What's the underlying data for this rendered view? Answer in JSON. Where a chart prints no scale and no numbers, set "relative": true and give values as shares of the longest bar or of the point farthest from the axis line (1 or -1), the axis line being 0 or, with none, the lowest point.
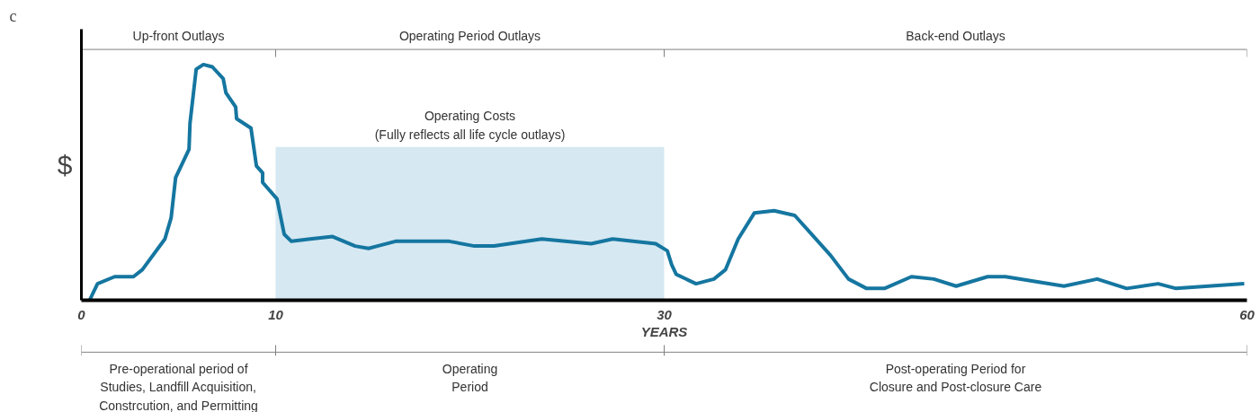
{
  "chart_data": {
    "type": "line",
    "title": "c",
    "ylabel": "$",
    "xlabel": "YEARS",
    "relative": true,
    "xlim": [
      0,
      60
    ],
    "xticks": [
      0,
      10,
      30,
      60
    ],
    "grid": false,
    "series": [
      {
        "type": "area",
        "color": "#d6e8f2",
        "x": [
          10,
          30
        ],
        "values": [
          0.65,
          0.65
        ]
      },
      {
        "color": "#1576a0",
        "line_style": "solid",
        "marker": "none",
        "x": [
          0.42,
          0.83,
          1.71,
          2.68,
          3.14,
          4.3,
          4.62,
          4.85,
          5.54,
          5.59,
          5.91,
          6.28,
          6.74,
          7.3,
          7.44,
          7.94,
          7.99,
          8.73,
          9.01,
          9.33,
          9.33,
          10.07,
          10.44,
          10.81,
          11.78,
          12.93,
          14.09,
          14.78,
          15.24,
          16.17,
          18.94,
          20.23,
          21.25,
          23.7,
          26.24,
          27.35,
          29.56,
          30.16,
          30.39,
          30.62,
          31.64,
          32.56,
          33.16,
          33.81,
          34.64,
          35.66,
          36.72,
          38.57,
          39.49,
          40.42,
          41.34,
          42.73,
          43.88,
          45.03,
          46.65,
          47.57,
          50.58,
          52.29,
          53.81,
          55.43,
          56.35,
          59.86
        ],
        "values": [
          0.0,
          0.07,
          0.1,
          0.1,
          0.13,
          0.26,
          0.35,
          0.52,
          0.64,
          0.75,
          0.98,
          1.0,
          0.99,
          0.94,
          0.88,
          0.82,
          0.77,
          0.73,
          0.57,
          0.54,
          0.5,
          0.43,
          0.28,
          0.25,
          0.26,
          0.27,
          0.23,
          0.22,
          0.23,
          0.25,
          0.25,
          0.23,
          0.23,
          0.26,
          0.24,
          0.26,
          0.24,
          0.21,
          0.15,
          0.11,
          0.07,
          0.09,
          0.13,
          0.26,
          0.37,
          0.38,
          0.36,
          0.19,
          0.09,
          0.05,
          0.05,
          0.1,
          0.09,
          0.06,
          0.1,
          0.1,
          0.06,
          0.09,
          0.05,
          0.07,
          0.05,
          0.07
        ]
      }
    ],
    "annotations": [
      {
        "text": "Operating Costs\n(Fully reflects all life cycle outlays)",
        "x": 20,
        "y": 0.65
      },
      "Up-front Outlays",
      "Operating Period Outlays",
      "Back-end Outlays",
      "Pre-operational period of\nStudies, Landfill Acquisition,\nConstrcution, and Permitting",
      "Operating\nPeriod",
      "Post-operating Period for\nClosure and Post-closure Care"
    ]
  }
}
